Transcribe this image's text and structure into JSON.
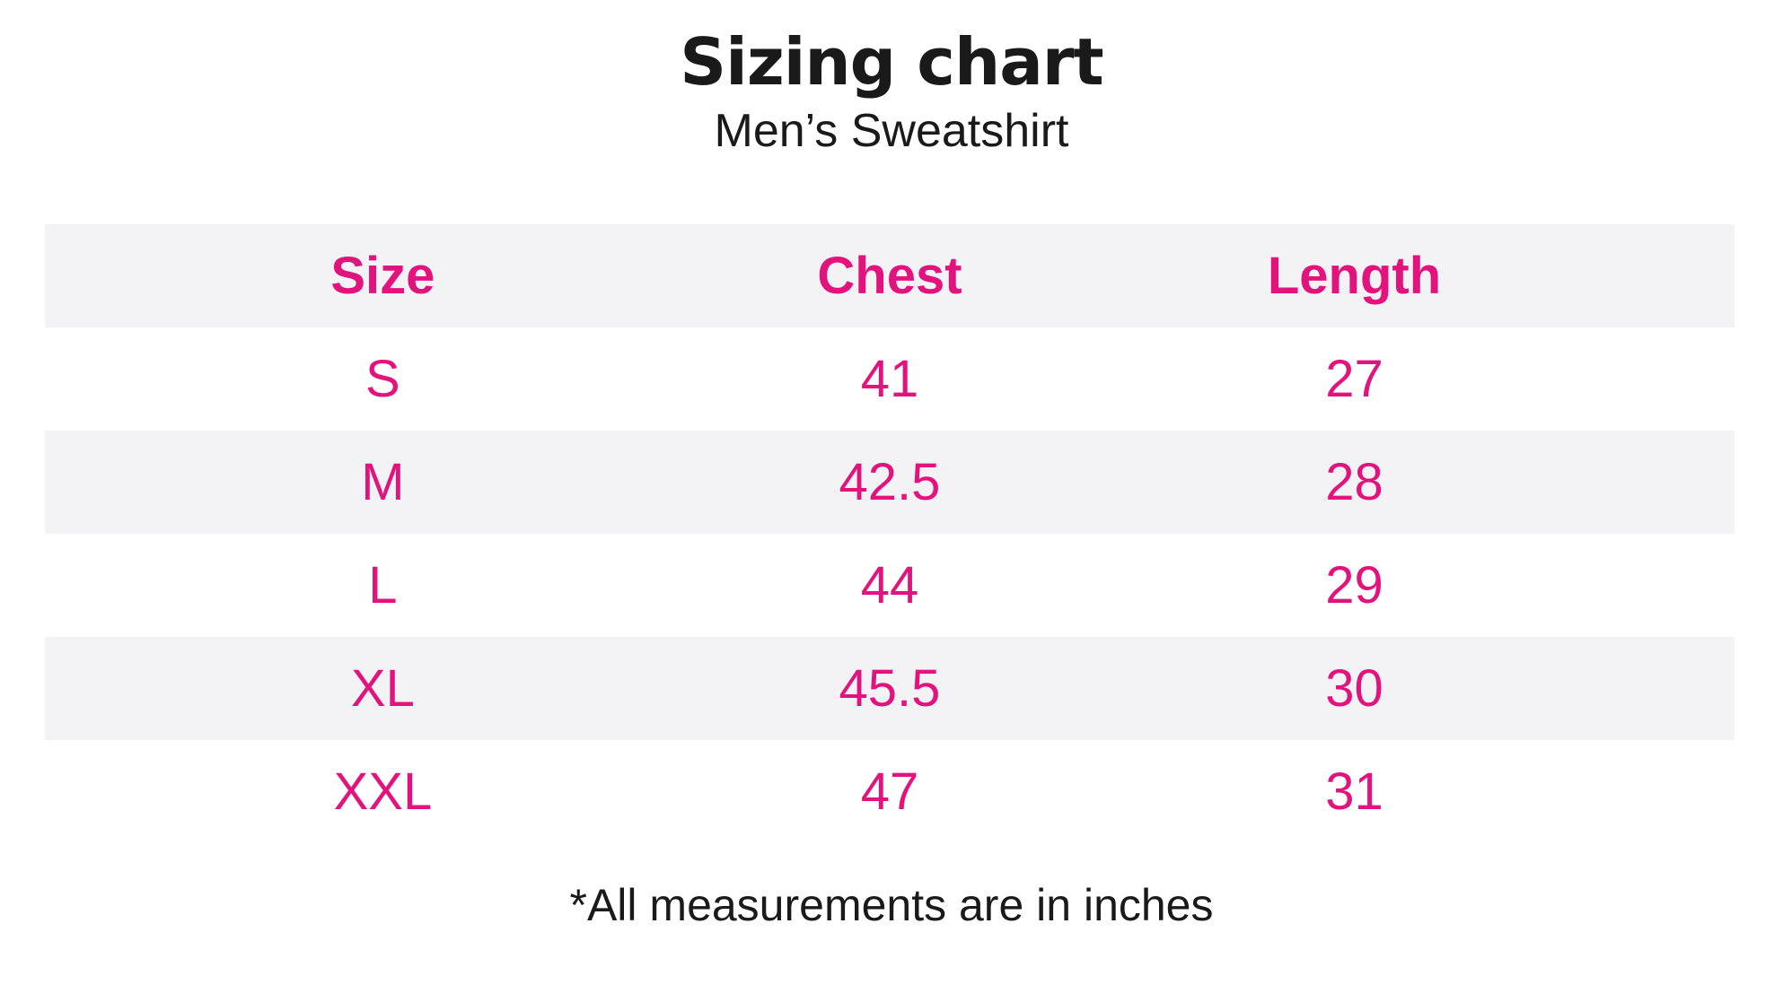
{
  "page": {
    "title": "Sizing chart",
    "subtitle": "Men’s Sweatshirt",
    "footnote": "*All measurements are in inches"
  },
  "table": {
    "headers": [
      "Size",
      "Chest",
      "Length"
    ],
    "rows": [
      {
        "size": "S",
        "chest": "41",
        "length": "27"
      },
      {
        "size": "M",
        "chest": "42.5",
        "length": "28"
      },
      {
        "size": "L",
        "chest": "44",
        "length": "29"
      },
      {
        "size": "XL",
        "chest": "45.5",
        "length": "30"
      },
      {
        "size": "XXL",
        "chest": "47",
        "length": "31"
      }
    ]
  },
  "colors": {
    "accent_pink": "#E3137E",
    "row_stripe_bg": "#F3F3F5",
    "text_black": "#1A1A1A",
    "page_bg": "#FFFFFF"
  },
  "chart_data": {
    "type": "table",
    "title": "Sizing chart",
    "subtitle": "Men’s Sweatshirt",
    "columns": [
      "Size",
      "Chest",
      "Length"
    ],
    "rows": [
      [
        "S",
        41,
        27
      ],
      [
        "M",
        42.5,
        28
      ],
      [
        "L",
        44,
        29
      ],
      [
        "XL",
        45.5,
        30
      ],
      [
        "XXL",
        47,
        31
      ]
    ],
    "units": "inches",
    "note": "*All measurements are in inches",
    "layout": {
      "header_row_bg": "#F3F3F5",
      "zebra_striping": true,
      "value_text_color": "#E3137E",
      "column_alignment": "center"
    }
  }
}
